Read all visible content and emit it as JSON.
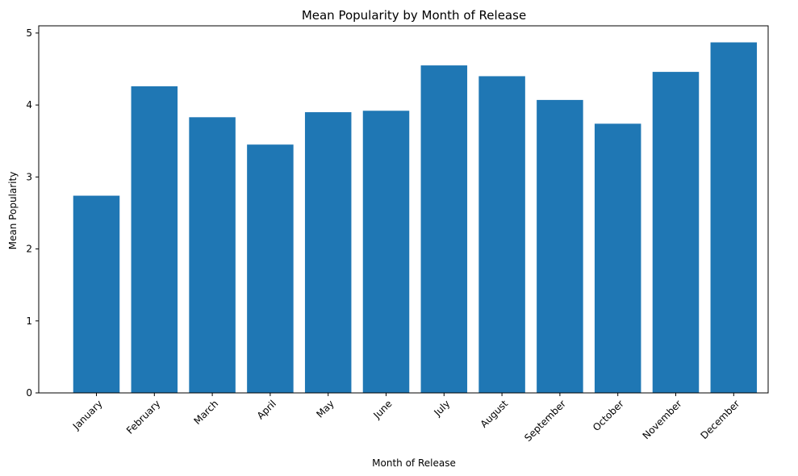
{
  "chart_data": {
    "type": "bar",
    "title": "Mean Popularity by Month of Release",
    "xlabel": "Month of Release",
    "ylabel": "Mean Popularity",
    "categories": [
      "January",
      "February",
      "March",
      "April",
      "May",
      "June",
      "July",
      "August",
      "September",
      "October",
      "November",
      "December"
    ],
    "values": [
      2.74,
      4.26,
      3.83,
      3.45,
      3.9,
      3.92,
      4.55,
      4.4,
      4.07,
      3.74,
      4.46,
      4.87
    ],
    "ylim": [
      0,
      5.1
    ],
    "yticks": [
      0,
      1,
      2,
      3,
      4,
      5
    ],
    "grid": false,
    "legend": false,
    "colors": {
      "bar": "#1f77b4"
    }
  }
}
